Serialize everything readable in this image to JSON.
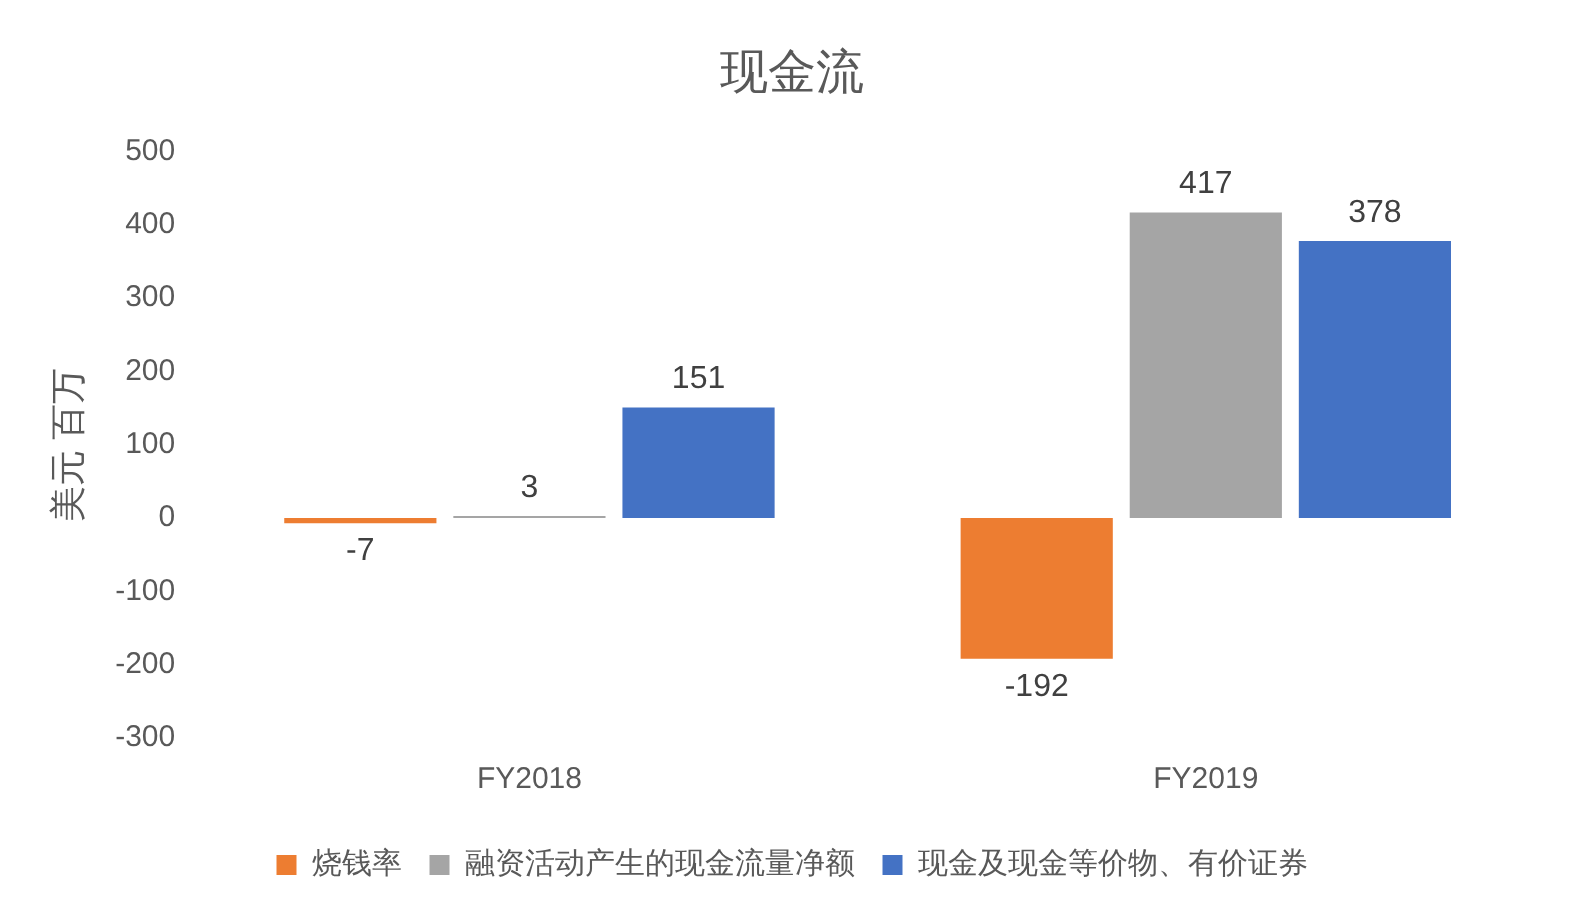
{
  "chart_data": {
    "type": "bar",
    "title": "现金流",
    "ylabel": "美元 百万",
    "categories": [
      "FY2018",
      "FY2019"
    ],
    "series": [
      {
        "name": "烧钱率",
        "color": "#ed7d31",
        "values": [
          -7,
          -192
        ]
      },
      {
        "name": "融资活动产生的现金流量净额",
        "color": "#a5a5a5",
        "values": [
          3,
          417
        ]
      },
      {
        "name": "现金及现金等价物、有价证券",
        "color": "#4472c4",
        "values": [
          151,
          378
        ]
      }
    ],
    "ylim": [
      -300,
      500
    ],
    "yticks": [
      -300,
      -200,
      -100,
      0,
      100,
      200,
      300,
      400,
      500
    ],
    "grid": false,
    "legend": "bottom",
    "data_labels": true
  }
}
